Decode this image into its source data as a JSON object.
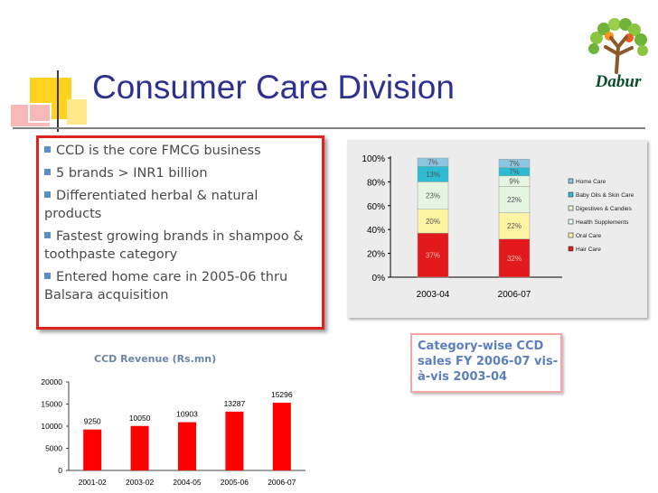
{
  "slide": {
    "title": "Consumer Care Division",
    "logo_text": "Dabur"
  },
  "bullets": [
    {
      "text": "CCD is the core FMCG business"
    },
    {
      "text": "5 brands > INR1 billion"
    },
    {
      "text": "Differentiated herbal & natural products"
    },
    {
      "text": "Fastest growing brands in shampoo & toothpaste category"
    },
    {
      "text": "Entered home care in 2005-06 thru Balsara acquisition"
    }
  ],
  "note": {
    "text": "Category-wise CCD sales FY 2006-07 vis-à-vis 2003-04"
  },
  "colors": {
    "title": "#2e3192",
    "accent_red": "#e0231f",
    "hair_care": "#e31a1c",
    "oral_care": "#fff4a3",
    "health_supplements": "#e8f8fb",
    "digestives_candies": "#e6f5e0",
    "baby_oils_skin_care": "#2bbcd4",
    "home_care": "#8cc5e0"
  },
  "chart_data": [
    {
      "type": "bar",
      "stacked": true,
      "categories": [
        "2003-04",
        "2006-07"
      ],
      "yticks": [
        "0%",
        "20%",
        "40%",
        "60%",
        "80%",
        "100%"
      ],
      "ylim": [
        0,
        100
      ],
      "legend_position": "right",
      "series": [
        {
          "name": "Hair Care",
          "values": [
            37,
            32
          ],
          "labels": [
            "37%",
            "32%"
          ],
          "color": "#e31a1c"
        },
        {
          "name": "Oral Care",
          "values": [
            20,
            22
          ],
          "labels": [
            "20%",
            "22%"
          ],
          "color": "#fff4a3"
        },
        {
          "name": "Health Supplements",
          "values": [
            0,
            0
          ],
          "labels": [
            "",
            ""
          ],
          "color": "#e8f8fb"
        },
        {
          "name": "Digestives & Candies",
          "values": [
            23,
            22
          ],
          "labels": [
            "23%",
            "22%"
          ],
          "color": "#e6f5e0"
        },
        {
          "name": "Baby Oils & Skin Care",
          "values": [
            13,
            7
          ],
          "labels": [
            "13%",
            "7%"
          ],
          "color": "#2bbcd4"
        },
        {
          "name": "Home Care",
          "values": [
            7,
            7
          ],
          "labels": [
            "7%",
            "7%"
          ],
          "color": "#8cc5e0"
        }
      ],
      "extra_segment": {
        "values": [
          0,
          9
        ],
        "labels": [
          "",
          "9%"
        ],
        "color": "#e6f5e0"
      }
    },
    {
      "type": "bar",
      "title": "CCD Revenue (Rs.mn)",
      "categories": [
        "2001-02",
        "2003-02",
        "2004-05",
        "2005-06",
        "2006-07"
      ],
      "values": [
        9250,
        10050,
        10903,
        13287,
        15296
      ],
      "yticks": [
        "0",
        "5000",
        "10000",
        "15000",
        "20000"
      ],
      "ylim": [
        0,
        20000
      ],
      "color": "#ff0000"
    }
  ]
}
